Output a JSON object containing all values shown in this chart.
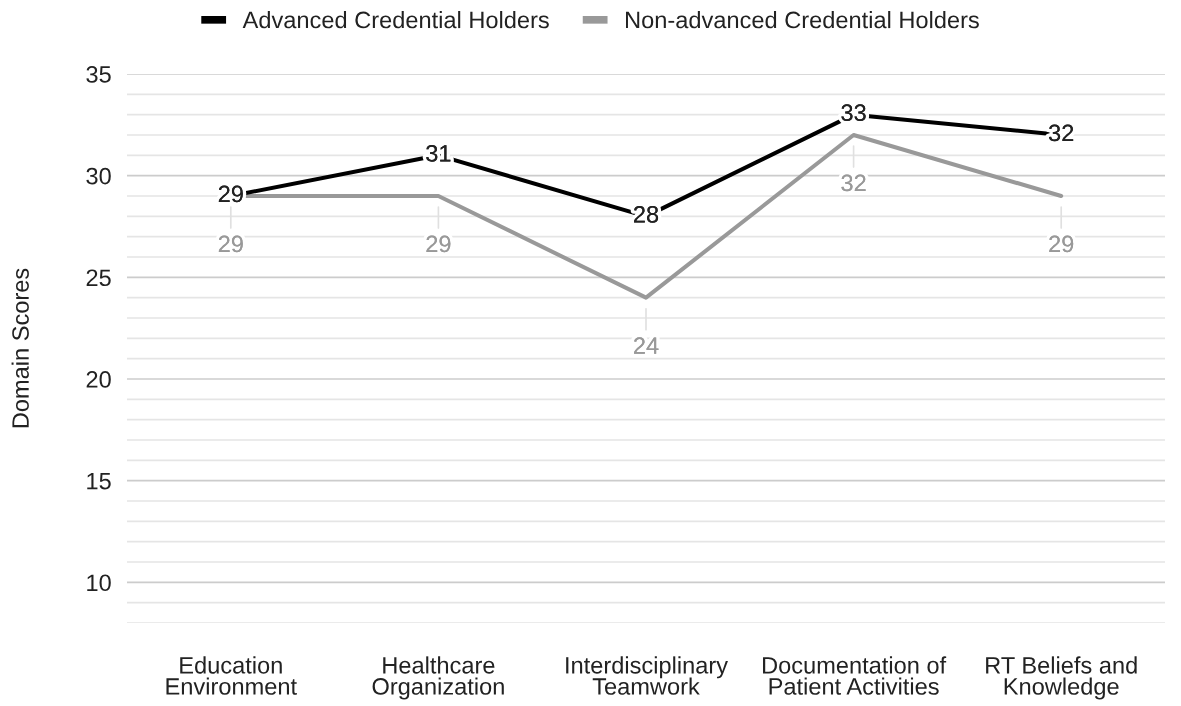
{
  "chart_data": {
    "type": "line",
    "ylabel": "Domain Scores",
    "categories": [
      "Education\nEnvironment",
      "Healthcare\nOrganization",
      "Interdisciplinary\nTeamwork",
      "Documentation of\nPatient Activities",
      "RT Beliefs and\nKnowledge"
    ],
    "series": [
      {
        "name": "Advanced Credential Holders",
        "color": "#000000",
        "values": [
          29,
          31,
          28,
          33,
          32
        ]
      },
      {
        "name": "Non-advanced Credential Holders",
        "color": "#999999",
        "values": [
          29,
          29,
          24,
          32,
          29
        ]
      }
    ],
    "ylim": [
      8,
      35
    ],
    "yticks": [
      {
        "value": 8,
        "label": null
      },
      {
        "value": 9,
        "label": null
      },
      10,
      {
        "value": 11,
        "label": null
      },
      {
        "value": 12,
        "label": null
      },
      {
        "value": 13,
        "label": null
      },
      {
        "value": 14,
        "label": null
      },
      15,
      {
        "value": 16,
        "label": null
      },
      {
        "value": 17,
        "label": null
      },
      {
        "value": 18,
        "label": null
      },
      {
        "value": 19,
        "label": null
      },
      20,
      {
        "value": 21,
        "label": null
      },
      {
        "value": 22,
        "label": null
      },
      {
        "value": 23,
        "label": null
      },
      {
        "value": 24,
        "label": null
      },
      25,
      {
        "value": 26,
        "label": null
      },
      {
        "value": 27,
        "label": null
      },
      {
        "value": 28,
        "label": null
      },
      {
        "value": 29,
        "label": null
      },
      30,
      {
        "value": 31,
        "label": null
      },
      {
        "value": 32,
        "label": null
      },
      {
        "value": 33,
        "label": null
      },
      {
        "value": 34,
        "label": null
      },
      35
    ],
    "grid": "y",
    "legend": "top",
    "data_labels": true,
    "line_style": "solid"
  }
}
